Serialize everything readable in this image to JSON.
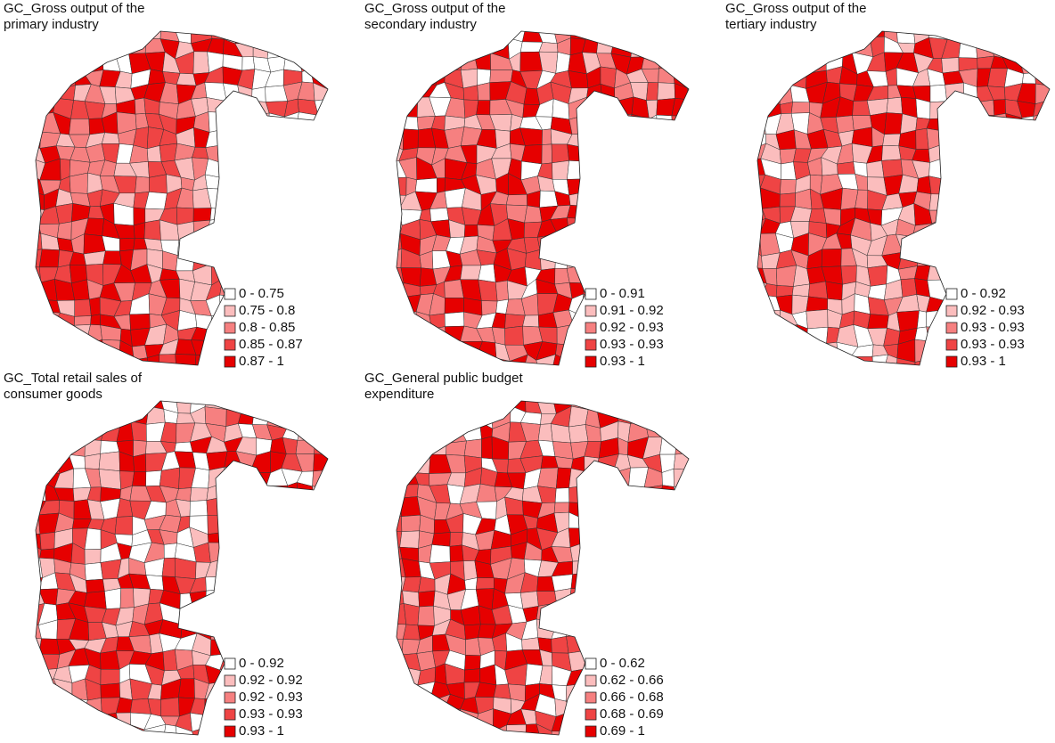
{
  "panels": [
    {
      "title_lines": [
        "GC_Gross output of the",
        "primary industry"
      ],
      "legend": [
        {
          "label": "0 - 0.75",
          "color": "#ffffff"
        },
        {
          "label": "0.75 - 0.8",
          "color": "#fbbdbd"
        },
        {
          "label": "0.8 - 0.85",
          "color": "#f68080"
        },
        {
          "label": "0.85 - 0.87",
          "color": "#ef4444"
        },
        {
          "label": "0.87 - 1",
          "color": "#e60000"
        }
      ]
    },
    {
      "title_lines": [
        "GC_Gross output of the",
        "secondary industry"
      ],
      "legend": [
        {
          "label": "0 - 0.91",
          "color": "#ffffff"
        },
        {
          "label": "0.91 - 0.92",
          "color": "#fbbdbd"
        },
        {
          "label": "0.92 - 0.93",
          "color": "#f68080"
        },
        {
          "label": "0.93 - 0.93",
          "color": "#ef4444"
        },
        {
          "label": "0.93 - 1",
          "color": "#e60000"
        }
      ]
    },
    {
      "title_lines": [
        "GC_Gross output of the",
        "tertiary industry"
      ],
      "legend": [
        {
          "label": "0 - 0.92",
          "color": "#ffffff"
        },
        {
          "label": "0.92 - 0.93",
          "color": "#fbbdbd"
        },
        {
          "label": "0.93 - 0.93",
          "color": "#f68080"
        },
        {
          "label": "0.93 - 0.93",
          "color": "#ef4444"
        },
        {
          "label": "0.93 - 1",
          "color": "#e60000"
        }
      ]
    },
    {
      "title_lines": [
        "GC_Total retail sales of",
        "consumer goods"
      ],
      "legend": [
        {
          "label": "0 - 0.92",
          "color": "#ffffff"
        },
        {
          "label": "0.92 - 0.92",
          "color": "#fbbdbd"
        },
        {
          "label": "0.92 - 0.93",
          "color": "#f68080"
        },
        {
          "label": "0.93 - 0.93",
          "color": "#ef4444"
        },
        {
          "label": "0.93 - 1",
          "color": "#e60000"
        }
      ]
    },
    {
      "title_lines": [
        "GC_General public budget",
        "expenditure"
      ],
      "legend": [
        {
          "label": "0 - 0.62",
          "color": "#ffffff"
        },
        {
          "label": "0.62 - 0.66",
          "color": "#fbbdbd"
        },
        {
          "label": "0.66 - 0.68",
          "color": "#f68080"
        },
        {
          "label": "0.68 - 0.69",
          "color": "#ef4444"
        },
        {
          "label": "0.69 - 1",
          "color": "#e60000"
        }
      ]
    }
  ]
}
